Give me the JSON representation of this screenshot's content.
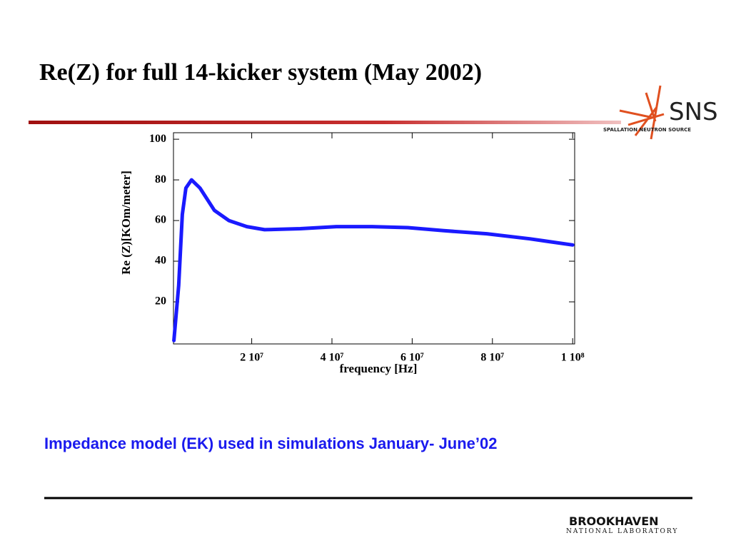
{
  "title": "Re(Z) for full 14-kicker system (May 2002)",
  "chart_data": {
    "type": "line",
    "xlabel": "frequency [Hz]",
    "ylabel": "Re (Z)[KOm/meter]",
    "x": [
      600000,
      1800000,
      2700000,
      3600000,
      5000000,
      7100000,
      10700000,
      14300000,
      18800000,
      23200000,
      32100000,
      41100000,
      50000000,
      58900000,
      67900000,
      78600000,
      89300000,
      100000000
    ],
    "series": [
      {
        "name": "Re(Z)",
        "color": "#1a1aff",
        "values": [
          1,
          28,
          63,
          76,
          80,
          76,
          65,
          60,
          57,
          55.5,
          56,
          57,
          57,
          56.5,
          55,
          53.5,
          51,
          48
        ]
      }
    ],
    "xlim": [
      500000,
      100500000
    ],
    "ylim": [
      -0.7,
      103.2
    ],
    "xticks": [
      {
        "value": 20000000,
        "label": "2 10⁷"
      },
      {
        "value": 40000000,
        "label": "4 10⁷"
      },
      {
        "value": 60000000,
        "label": "6 10⁷"
      },
      {
        "value": 80000000,
        "label": "8 10⁷"
      },
      {
        "value": 100000000,
        "label": "1 10⁸"
      }
    ],
    "yticks": [
      20,
      40,
      60,
      80,
      100
    ]
  },
  "caption": "Impedance model (EK) used in simulations January- June’02",
  "logos": {
    "sns": "SNS",
    "sns_sub": "SPALLATION NEUTRON SOURCE",
    "bnl": "BROOKHAVEN",
    "bnl_sub": "NATIONAL LABORATORY"
  }
}
